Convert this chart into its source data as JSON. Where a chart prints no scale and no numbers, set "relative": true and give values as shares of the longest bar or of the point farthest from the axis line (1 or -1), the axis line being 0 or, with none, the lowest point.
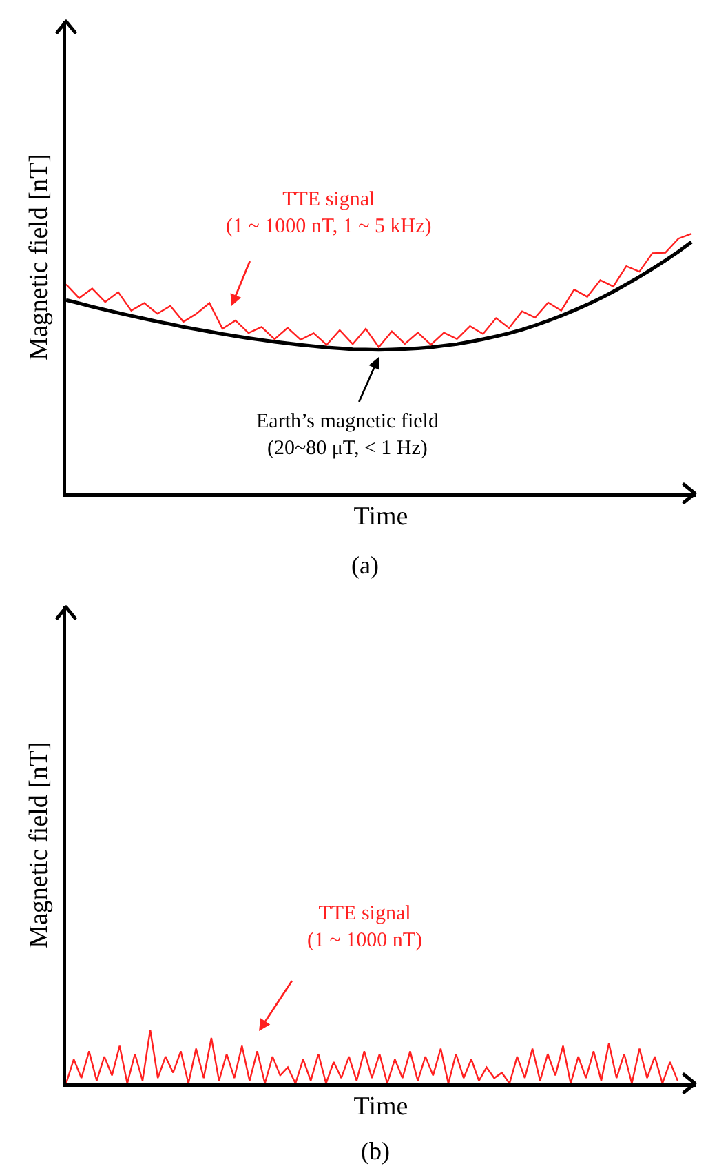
{
  "chart_data": [
    {
      "type": "line",
      "relative": true,
      "xlabel": "Time",
      "ylabel": "Magnetic field [nT]",
      "categories": [
        null,
        null,
        null,
        null,
        null,
        null,
        null,
        null,
        null,
        null,
        null,
        null,
        null,
        null,
        null,
        null,
        null,
        null,
        null,
        null,
        null,
        null,
        null,
        null,
        null,
        null,
        null,
        null,
        null,
        null,
        null,
        null,
        null,
        null,
        null,
        null,
        null,
        null,
        null,
        null,
        null,
        null,
        null,
        null,
        null,
        null,
        null,
        null,
        null
      ],
      "series": [
        {
          "color": "#000000",
          "values": [
            0.745,
            0.732,
            0.719,
            0.707,
            0.695,
            0.684,
            0.673,
            0.662,
            0.652,
            0.641,
            0.632,
            0.623,
            0.614,
            0.606,
            0.598,
            0.591,
            0.584,
            0.578,
            0.572,
            0.567,
            0.562,
            0.559,
            0.555,
            0.554,
            0.553,
            0.554,
            0.556,
            0.559,
            0.563,
            0.569,
            0.575,
            0.584,
            0.594,
            0.605,
            0.617,
            0.631,
            0.647,
            0.665,
            0.684,
            0.705,
            0.727,
            0.751,
            0.777,
            0.805,
            0.834,
            0.865,
            0.897,
            0.931,
            0.968
          ]
        },
        {
          "color": "#ff2020",
          "values": [
            0.805,
            0.752,
            0.789,
            0.737,
            0.775,
            0.704,
            0.733,
            0.692,
            0.722,
            0.661,
            0.692,
            0.733,
            0.634,
            0.666,
            0.618,
            0.641,
            0.594,
            0.638,
            0.592,
            0.617,
            0.572,
            0.629,
            0.575,
            0.634,
            0.563,
            0.624,
            0.576,
            0.619,
            0.573,
            0.619,
            0.595,
            0.644,
            0.614,
            0.675,
            0.637,
            0.701,
            0.677,
            0.735,
            0.704,
            0.785,
            0.757,
            0.821,
            0.797,
            0.875,
            0.854,
            0.925,
            0.927,
            0.981,
            1.0
          ]
        }
      ],
      "annotations": [
        "TTE signal\n(1 ~ 1000 nT, 1 ~ 5 kHz)",
        "Earth’s magnetic field\n(20~80 μT, < 1 Hz)",
        "(a)"
      ]
    },
    {
      "type": "line",
      "relative": true,
      "xlabel": "Time",
      "ylabel": "Magnetic field [nT]",
      "categories": [
        null,
        null,
        null,
        null,
        null,
        null,
        null,
        null,
        null,
        null,
        null,
        null,
        null,
        null,
        null,
        null,
        null,
        null,
        null,
        null,
        null,
        null,
        null,
        null,
        null,
        null,
        null,
        null,
        null,
        null,
        null,
        null,
        null,
        null,
        null,
        null,
        null,
        null,
        null,
        null,
        null,
        null,
        null,
        null,
        null,
        null,
        null,
        null,
        null,
        null,
        null,
        null,
        null,
        null,
        null,
        null,
        null,
        null,
        null,
        null,
        null,
        null,
        null,
        null,
        null,
        null,
        null,
        null,
        null,
        null,
        null,
        null,
        null,
        null,
        null,
        null,
        null,
        null,
        null,
        null,
        null
      ],
      "series": [
        {
          "color": "#ff2020",
          "values": [
            0,
            0.45,
            0.1,
            0.6,
            0.05,
            0.5,
            0.15,
            0.7,
            0,
            0.55,
            0.05,
            1.0,
            0.1,
            0.5,
            0.2,
            0.6,
            0,
            0.65,
            0.1,
            0.85,
            0.05,
            0.55,
            0.1,
            0.7,
            0.05,
            0.6,
            0,
            0.5,
            0.15,
            0.3,
            0,
            0.45,
            0.05,
            0.55,
            0,
            0.4,
            0.1,
            0.5,
            0.05,
            0.6,
            0.1,
            0.55,
            0,
            0.45,
            0.1,
            0.6,
            0.05,
            0.5,
            0.15,
            0.65,
            0,
            0.55,
            0.1,
            0.45,
            0.05,
            0.3,
            0.1,
            0.2,
            0,
            0.5,
            0.1,
            0.65,
            0.05,
            0.55,
            0.15,
            0.7,
            0,
            0.5,
            0.1,
            0.6,
            0.05,
            0.75,
            0.1,
            0.55,
            0,
            0.65,
            0.1,
            0.5,
            0,
            0.4,
            0.05
          ]
        }
      ],
      "annotations": [
        "TTE signal\n(1 ~ 1000 nT)",
        "(b)"
      ]
    }
  ]
}
